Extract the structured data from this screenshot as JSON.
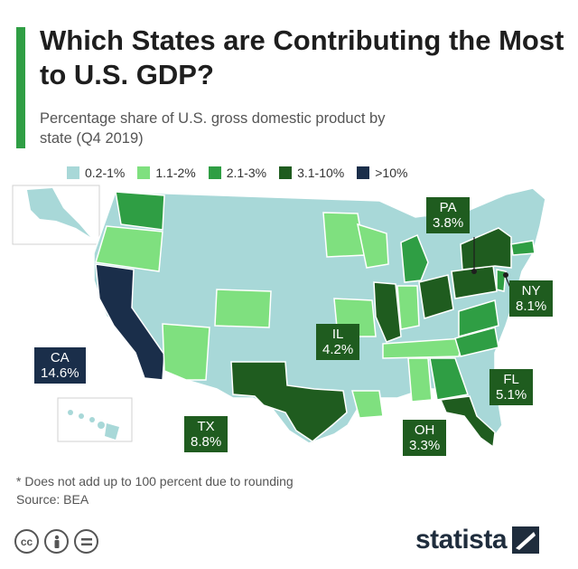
{
  "header": {
    "title": "Which States are Contributing the Most to U.S. GDP?",
    "subtitle": "Percentage share of U.S. gross domestic product by state (Q4 2019)"
  },
  "legend": {
    "items": [
      {
        "label": "0.2-1%",
        "color": "#a8d8d8"
      },
      {
        "label": "1.1-2%",
        "color": "#7fe07f"
      },
      {
        "label": "2.1-3%",
        "color": "#2f9e44"
      },
      {
        "label": "3.1-10%",
        "color": "#1f5c1f"
      },
      {
        "label": ">10%",
        "color": "#1a2e4a"
      }
    ]
  },
  "callouts": {
    "pa": {
      "state": "PA",
      "value": "3.8%"
    },
    "ny": {
      "state": "NY",
      "value": "8.1%"
    },
    "il": {
      "state": "IL",
      "value": "4.2%"
    },
    "ca": {
      "state": "CA",
      "value": "14.6%"
    },
    "fl": {
      "state": "FL",
      "value": "5.1%"
    },
    "tx": {
      "state": "TX",
      "value": "8.8%"
    },
    "oh": {
      "state": "OH",
      "value": "3.3%"
    }
  },
  "footer": {
    "footnote": "* Does not add up to 100 percent due to rounding",
    "source": "Source: BEA",
    "brand": "statista"
  }
}
